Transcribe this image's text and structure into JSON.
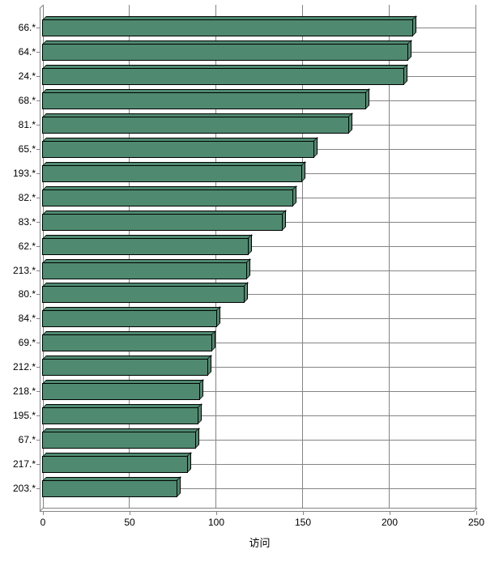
{
  "chart_data": {
    "type": "bar",
    "orientation": "horizontal",
    "title": "",
    "xlabel": "访问",
    "ylabel": "",
    "categories": [
      "66.*",
      "64.*",
      "24.*",
      "68.*",
      "81.*",
      "65.*",
      "193.*",
      "82.*",
      "83.*",
      "62.*",
      "213.*",
      "80.*",
      "84.*",
      "69.*",
      "212.*",
      "218.*",
      "195.*",
      "67.*",
      "217.*",
      "203.*"
    ],
    "values": [
      214,
      211,
      209,
      187,
      177,
      157,
      150,
      145,
      139,
      119,
      118,
      117,
      101,
      98,
      96,
      91,
      90,
      89,
      84,
      78
    ],
    "xlim": [
      0,
      250
    ],
    "xticks": [
      0,
      50,
      100,
      150,
      200,
      250
    ],
    "grid": true,
    "legend": "none",
    "style_3d": true
  },
  "colors": {
    "bar_fill": "#4f8a70",
    "bar_outline": "#000000",
    "gridline": "#848484",
    "text": "#000000",
    "background": "#ffffff"
  }
}
